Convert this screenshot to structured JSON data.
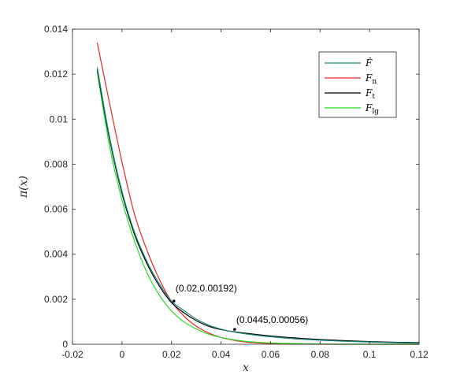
{
  "chart_data": {
    "type": "line",
    "title": "",
    "xlabel": "x",
    "ylabel": "π(x)",
    "xlim": [
      -0.02,
      0.12
    ],
    "ylim": [
      0,
      0.014
    ],
    "xticks": [
      -0.02,
      0,
      0.02,
      0.04,
      0.06,
      0.08,
      0.1,
      0.12
    ],
    "xtick_labels": [
      "-0.02",
      "0",
      "0.02",
      "0.04",
      "0.06",
      "0.08",
      "0.1",
      "0.12"
    ],
    "yticks": [
      0,
      0.002,
      0.004,
      0.006,
      0.008,
      0.01,
      0.012,
      0.014
    ],
    "ytick_labels": [
      "0",
      "0.002",
      "0.004",
      "0.006",
      "0.008",
      "0.01",
      "0.012",
      "0.014"
    ],
    "grid": false,
    "legend_position": "top-right",
    "series": [
      {
        "name": "F̂",
        "legend_main": "F̂",
        "legend_sub": "",
        "color": "#1a8a7a",
        "x": [
          -0.01,
          -0.005,
          0,
          0.005,
          0.01,
          0.015,
          0.02,
          0.025,
          0.03,
          0.035,
          0.04,
          0.045,
          0.05,
          0.06,
          0.07,
          0.08,
          0.09,
          0.1,
          0.11,
          0.12
        ],
        "y": [
          0.0123,
          0.0092,
          0.0068,
          0.005,
          0.0037,
          0.0027,
          0.00192,
          0.0015,
          0.00112,
          0.00085,
          0.00067,
          0.00055,
          0.00046,
          0.00033,
          0.00024,
          0.00018,
          0.00013,
          0.0001,
          7e-05,
          5e-05
        ]
      },
      {
        "name": "Fn",
        "legend_main": "F",
        "legend_sub": "n",
        "color": "#e8262a",
        "x": [
          -0.01,
          -0.005,
          0,
          0.005,
          0.01,
          0.015,
          0.02,
          0.025,
          0.03,
          0.035,
          0.04,
          0.045,
          0.05,
          0.06,
          0.07,
          0.08,
          0.09,
          0.1,
          0.11,
          0.12
        ],
        "y": [
          0.0134,
          0.0107,
          0.0081,
          0.0058,
          0.0042,
          0.0029,
          0.0019,
          0.00125,
          0.0008,
          0.0005,
          0.0003,
          0.00018,
          0.0001,
          3e-05,
          1e-05,
          0,
          0,
          0,
          0,
          0
        ]
      },
      {
        "name": "Ft",
        "legend_main": "F",
        "legend_sub": "t",
        "color": "#000000",
        "x": [
          -0.01,
          -0.005,
          0,
          0.005,
          0.01,
          0.015,
          0.02,
          0.025,
          0.03,
          0.035,
          0.04,
          0.045,
          0.05,
          0.06,
          0.07,
          0.08,
          0.09,
          0.1,
          0.11,
          0.12
        ],
        "y": [
          0.0122,
          0.0091,
          0.0067,
          0.0049,
          0.0036,
          0.0026,
          0.00185,
          0.0014,
          0.00105,
          0.0008,
          0.00065,
          0.00056,
          0.00049,
          0.00037,
          0.00028,
          0.00021,
          0.00016,
          0.00012,
          9e-05,
          7e-05
        ]
      },
      {
        "name": "Flg",
        "legend_main": "F",
        "legend_sub": "lg",
        "color": "#22dd22",
        "x": [
          -0.01,
          -0.005,
          0,
          0.005,
          0.01,
          0.015,
          0.02,
          0.025,
          0.03,
          0.035,
          0.04,
          0.045,
          0.05,
          0.06,
          0.07,
          0.08,
          0.09,
          0.1,
          0.11,
          0.12
        ],
        "y": [
          0.0121,
          0.0088,
          0.0064,
          0.0046,
          0.0032,
          0.0022,
          0.00148,
          0.001,
          0.00068,
          0.00045,
          0.0003,
          0.0002,
          0.00013,
          6e-05,
          3e-05,
          1e-05,
          0,
          0,
          0,
          0
        ]
      }
    ],
    "annotations": [
      {
        "label": "(0.02,0.00192)",
        "x": 0.021,
        "y": 0.00192
      },
      {
        "label": "(0.0445,0.00056)",
        "x": 0.0455,
        "y": 0.00066
      }
    ]
  }
}
